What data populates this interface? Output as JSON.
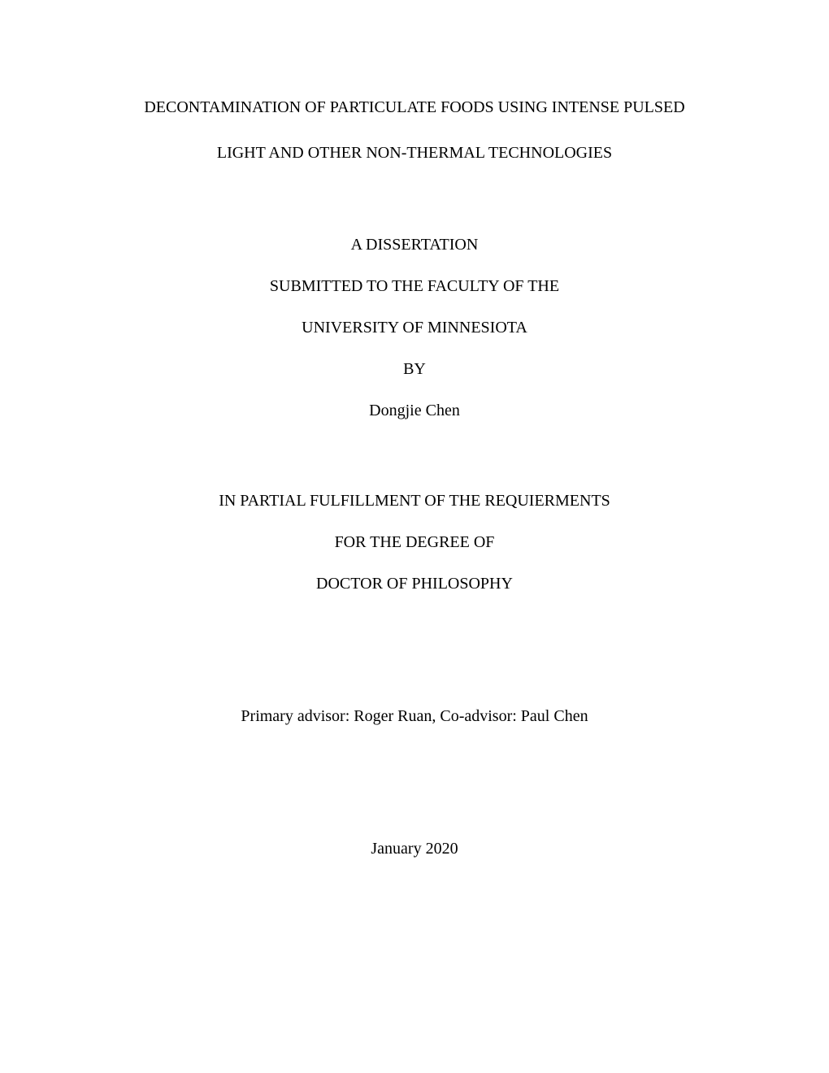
{
  "title": {
    "line1": "DECONTAMINATION OF PARTICULATE FOODS USING INTENSE PULSED",
    "line2": "LIGHT AND OTHER NON-THERMAL TECHNOLOGIES"
  },
  "submission": {
    "type": "A DISSERTATION",
    "submitted_to": "SUBMITTED TO THE FACULTY OF THE",
    "university": "UNIVERSITY OF MINNESIOTA",
    "by": "BY",
    "author": "Dongjie Chen"
  },
  "degree": {
    "fulfillment": "IN PARTIAL FULFILLMENT OF THE REQUIERMENTS",
    "for": "FOR THE DEGREE OF",
    "degree_name": "DOCTOR OF PHILOSOPHY"
  },
  "advisors": "Primary advisor: Roger Ruan, Co-advisor: Paul Chen",
  "date": "January 2020",
  "colors": {
    "background": "#ffffff",
    "text": "#000000"
  },
  "typography": {
    "font_family": "Times New Roman",
    "font_size_pt": 15,
    "line_height": 1.4
  }
}
